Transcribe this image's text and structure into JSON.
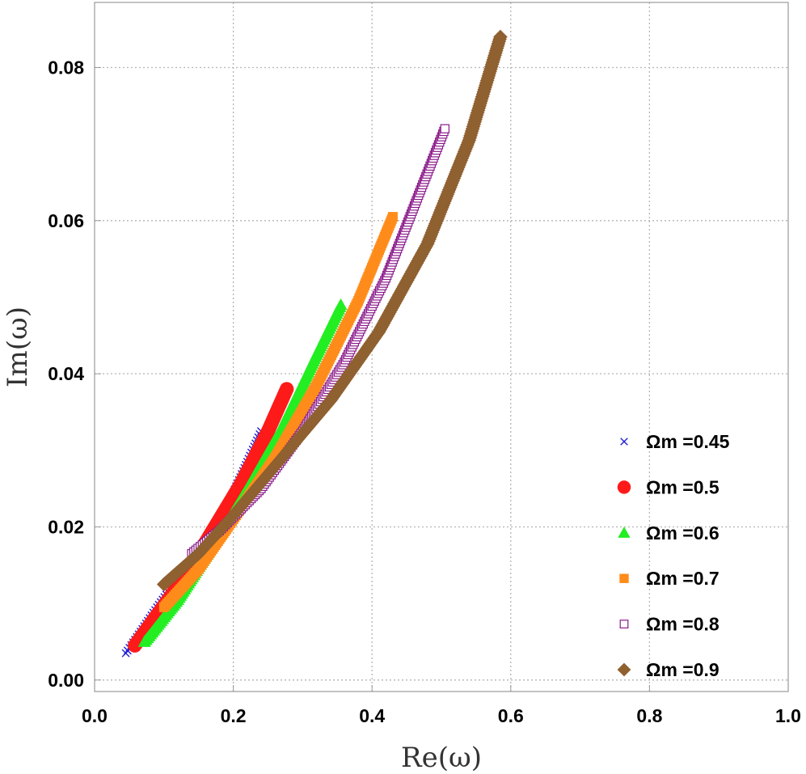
{
  "chart_data": {
    "type": "scatter",
    "title": "",
    "xlabel": "Re(ω)",
    "ylabel": "Im(ω)",
    "xlim": [
      0.0,
      1.0
    ],
    "ylim": [
      -0.0015,
      0.0885
    ],
    "xticks": [
      0.0,
      0.2,
      0.4,
      0.6,
      0.8,
      1.0
    ],
    "xtick_labels": [
      "0.0",
      "0.2",
      "0.4",
      "0.6",
      "0.8",
      "1.0"
    ],
    "yticks": [
      0.0,
      0.02,
      0.04,
      0.06,
      0.08
    ],
    "ytick_labels": [
      "0.00",
      "0.02",
      "0.04",
      "0.06",
      "0.08"
    ],
    "grid": true,
    "legend_position": "bottom-right",
    "series": [
      {
        "name": "Ωm =0.45",
        "marker": "x",
        "color": "#1f1fd6",
        "x": [
          0.045,
          0.09,
          0.13,
          0.17,
          0.2,
          0.22,
          0.24
        ],
        "y": [
          0.0035,
          0.0095,
          0.0145,
          0.0195,
          0.0245,
          0.0285,
          0.0325
        ]
      },
      {
        "name": "Ωm =0.5",
        "marker": "circle",
        "color": "#ff1a1a",
        "x": [
          0.058,
          0.09,
          0.13,
          0.17,
          0.21,
          0.25,
          0.277
        ],
        "y": [
          0.0045,
          0.0085,
          0.0135,
          0.0195,
          0.0255,
          0.0325,
          0.038
        ]
      },
      {
        "name": "Ωm =0.6",
        "marker": "triangle",
        "color": "#22ee22",
        "x": [
          0.072,
          0.12,
          0.17,
          0.22,
          0.27,
          0.32,
          0.355
        ],
        "y": [
          0.005,
          0.0105,
          0.0175,
          0.025,
          0.033,
          0.0425,
          0.049
        ]
      },
      {
        "name": "Ωm =0.7",
        "marker": "square",
        "color": "#ff8c1a",
        "x": [
          0.1,
          0.15,
          0.2,
          0.26,
          0.32,
          0.38,
          0.43
        ],
        "y": [
          0.0095,
          0.0145,
          0.021,
          0.029,
          0.0385,
          0.0495,
          0.0605
        ]
      },
      {
        "name": "Ωm =0.8",
        "marker": "square-open",
        "color": "#8b1a8b",
        "x": [
          0.14,
          0.18,
          0.24,
          0.3,
          0.36,
          0.42,
          0.47,
          0.505
        ],
        "y": [
          0.0165,
          0.0195,
          0.025,
          0.0325,
          0.0415,
          0.0525,
          0.064,
          0.072
        ]
      },
      {
        "name": "Ωm =0.9",
        "marker": "diamond",
        "color": "#8f6030",
        "x": [
          0.1,
          0.15,
          0.2,
          0.27,
          0.34,
          0.41,
          0.48,
          0.54,
          0.585
        ],
        "y": [
          0.0125,
          0.0165,
          0.0215,
          0.029,
          0.0365,
          0.0455,
          0.057,
          0.0705,
          0.084
        ]
      }
    ]
  }
}
